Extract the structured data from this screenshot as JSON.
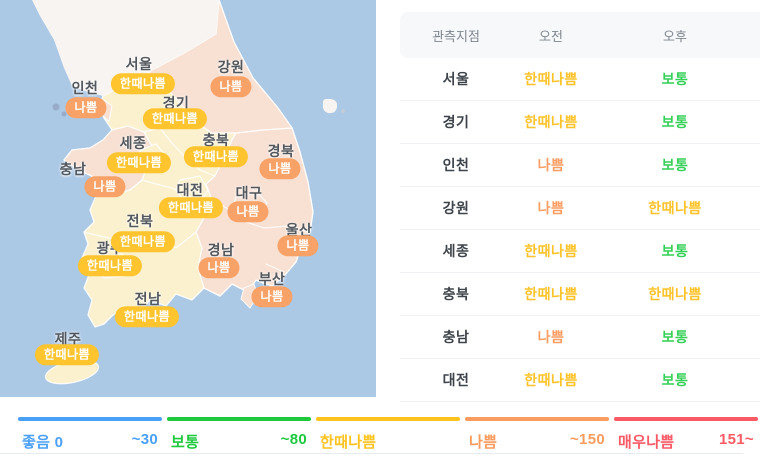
{
  "colors": {
    "sea": "#ABC8E5",
    "land_yellow": "#FBF1CF",
    "land_peach": "#F8E0D3",
    "land_north": "#F8F4F1",
    "island_gray": "#97ACC9",
    "badge_yellow": "#FFC42E",
    "badge_orange": "#F9A267",
    "status_yellow": "#FFC32A",
    "status_green": "#35D058",
    "status_orange": "#FA9E63",
    "legend_blue": "#4AA0F7",
    "legend_green": "#1EC93E",
    "legend_yellow": "#FFC320",
    "legend_orange": "#FA9C5F",
    "legend_red": "#FA5A65"
  },
  "map": {
    "badge_colors": {
      "한때나쁨": "badge_yellow",
      "나쁨": "badge_orange"
    },
    "markers": [
      {
        "name": "서울",
        "level": "한때나쁨",
        "nx": 139,
        "ny": 64,
        "bx": 143,
        "by": 84
      },
      {
        "name": "인천",
        "level": "나쁨",
        "nx": 85,
        "ny": 88,
        "bx": 86,
        "by": 108
      },
      {
        "name": "강원",
        "level": "나쁨",
        "nx": 231,
        "ny": 67,
        "bx": 231,
        "by": 87
      },
      {
        "name": "경기",
        "level": "한때나쁨",
        "nx": 176,
        "ny": 103,
        "bx": 175,
        "by": 119
      },
      {
        "name": "충남",
        "level": "나쁨",
        "nx": 73,
        "ny": 169,
        "bx": 105,
        "by": 187
      },
      {
        "name": "세종",
        "level": "한때나쁨",
        "nx": 133,
        "ny": 143,
        "bx": 139,
        "by": 163
      },
      {
        "name": "충북",
        "level": "한때나쁨",
        "nx": 216,
        "ny": 140,
        "bx": 216,
        "by": 157
      },
      {
        "name": "경북",
        "level": "나쁨",
        "nx": 281,
        "ny": 151,
        "bx": 280,
        "by": 169
      },
      {
        "name": "대전",
        "level": "한때나쁨",
        "nx": 190,
        "ny": 190,
        "bx": 191,
        "by": 208
      },
      {
        "name": "대구",
        "level": "나쁨",
        "nx": 249,
        "ny": 193,
        "bx": 248,
        "by": 212
      },
      {
        "name": "광주",
        "level": "한때나쁨",
        "nx": 110,
        "ny": 248,
        "bx": 110,
        "by": 266
      },
      {
        "name": "전북",
        "level": "한때나쁨",
        "nx": 140,
        "ny": 221,
        "bx": 143,
        "by": 242
      },
      {
        "name": "울산",
        "level": "나쁨",
        "nx": 299,
        "ny": 230,
        "bx": 298,
        "by": 246
      },
      {
        "name": "경남",
        "level": "나쁨",
        "nx": 221,
        "ny": 250,
        "bx": 219,
        "by": 268
      },
      {
        "name": "부산",
        "level": "나쁨",
        "nx": 272,
        "ny": 279,
        "bx": 272,
        "by": 297
      },
      {
        "name": "전남",
        "level": "한때나쁨",
        "nx": 148,
        "ny": 299,
        "bx": 147,
        "by": 317
      },
      {
        "name": "제주",
        "level": "한때나쁨",
        "nx": 68,
        "ny": 339,
        "bx": 67,
        "by": 355
      }
    ]
  },
  "table": {
    "headers": [
      "관측지점",
      "오전",
      "오후"
    ],
    "level_colors": {
      "한때나쁨": "status_yellow",
      "보통": "status_green",
      "나쁨": "status_orange"
    },
    "rows": [
      {
        "region": "서울",
        "am": "한때나쁨",
        "pm": "보통"
      },
      {
        "region": "경기",
        "am": "한때나쁨",
        "pm": "보통"
      },
      {
        "region": "인천",
        "am": "나쁨",
        "pm": "보통"
      },
      {
        "region": "강원",
        "am": "나쁨",
        "pm": "한때나쁨"
      },
      {
        "region": "세종",
        "am": "한때나쁨",
        "pm": "보통"
      },
      {
        "region": "충북",
        "am": "한때나쁨",
        "pm": "한때나쁨"
      },
      {
        "region": "충남",
        "am": "나쁨",
        "pm": "보통"
      },
      {
        "region": "대전",
        "am": "한때나쁨",
        "pm": "보통"
      }
    ]
  },
  "legend": {
    "segments": [
      {
        "label": "좋음 0",
        "value": "~30",
        "color_key": "legend_blue"
      },
      {
        "label": "보통",
        "value": "~80",
        "color_key": "legend_green"
      },
      {
        "label": "한때나쁨",
        "value": "",
        "color_key": "legend_yellow"
      },
      {
        "label": "나쁨",
        "value": "~150",
        "color_key": "legend_orange"
      },
      {
        "label": "매우나쁨",
        "value": "151~",
        "color_key": "legend_red"
      }
    ]
  }
}
